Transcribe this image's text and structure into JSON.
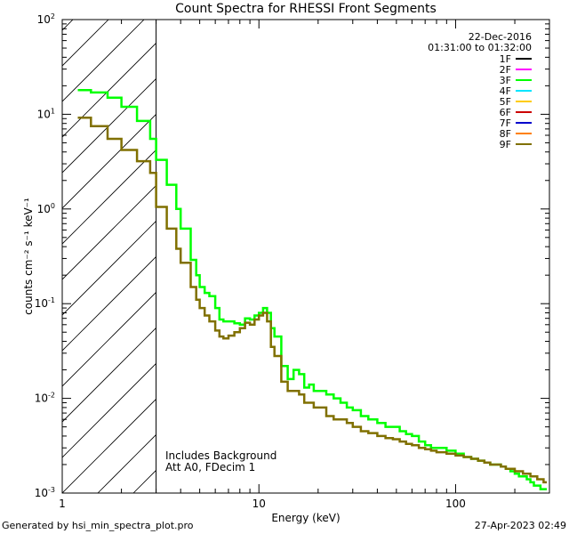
{
  "chart_data": {
    "type": "line",
    "title": "Count Spectra for RHESSI Front Segments",
    "xlabel": "Energy (keV)",
    "ylabel": "counts cm⁻² s⁻¹ keV⁻¹",
    "xscale": "log",
    "yscale": "log",
    "xlim": [
      1,
      300
    ],
    "ylim": [
      0.001,
      100
    ],
    "x_ticks": [
      {
        "value": 1,
        "label": "1"
      },
      {
        "value": 10,
        "label": "10"
      },
      {
        "value": 100,
        "label": "100"
      }
    ],
    "y_ticks": [
      {
        "value": 0.001,
        "base": "10",
        "exp": "-3"
      },
      {
        "value": 0.01,
        "base": "10",
        "exp": "-2"
      },
      {
        "value": 0.1,
        "base": "10",
        "exp": "-1"
      },
      {
        "value": 1,
        "base": "10",
        "exp": "0"
      },
      {
        "value": 10,
        "base": "10",
        "exp": "1"
      },
      {
        "value": 100,
        "base": "10",
        "exp": "2"
      }
    ],
    "excluded_region": {
      "from": 1,
      "to": 3
    },
    "annotations": [
      "22-Dec-2016",
      "01:31:00 to 01:32:00"
    ],
    "notes": [
      "Includes Background",
      "Att A0, FDecim 1"
    ],
    "footer_left": "Generated by hsi_min_spectra_plot.pro",
    "footer_right": "27-Apr-2023 02:49",
    "legend": [
      {
        "name": "1F",
        "color": "#000000"
      },
      {
        "name": "2F",
        "color": "#ff00ff"
      },
      {
        "name": "3F",
        "color": "#00ff00"
      },
      {
        "name": "4F",
        "color": "#00e5ff"
      },
      {
        "name": "5F",
        "color": "#ffcc00"
      },
      {
        "name": "6F",
        "color": "#cc0000"
      },
      {
        "name": "7F",
        "color": "#0000cc"
      },
      {
        "name": "8F",
        "color": "#ff8000"
      },
      {
        "name": "9F",
        "color": "#807000"
      }
    ],
    "series": [
      {
        "name": "3F",
        "color": "#00ff00",
        "x": [
          1.2,
          1.3,
          1.4,
          1.5,
          1.7,
          1.8,
          2.0,
          2.2,
          2.4,
          2.6,
          2.8,
          3.0,
          3.2,
          3.4,
          3.6,
          3.8,
          4.0,
          4.2,
          4.5,
          4.8,
          5.0,
          5.3,
          5.6,
          6.0,
          6.3,
          6.6,
          7.0,
          7.5,
          8.0,
          8.5,
          9.0,
          9.5,
          10.0,
          10.5,
          11.0,
          11.5,
          12.0,
          13.0,
          14.0,
          15.0,
          16.0,
          17.0,
          18.0,
          19.0,
          20.0,
          22.0,
          24.0,
          26.0,
          28.0,
          30.0,
          33.0,
          36.0,
          40.0,
          44.0,
          48.0,
          52.0,
          56.0,
          60.0,
          65.0,
          70.0,
          75.0,
          80.0,
          90.0,
          100.0,
          110.0,
          120.0,
          130.0,
          140.0,
          150.0,
          160.0,
          170.0,
          180.0,
          190.0,
          200.0,
          210.0,
          220.0,
          230.0,
          240.0,
          250.0,
          260.0,
          270.0,
          280.0
        ],
        "y": [
          18,
          18,
          17,
          17,
          15,
          15,
          12,
          12,
          8.5,
          8.5,
          5.5,
          3.3,
          3.3,
          1.8,
          1.8,
          1.0,
          0.62,
          0.62,
          0.29,
          0.2,
          0.15,
          0.13,
          0.12,
          0.09,
          0.068,
          0.065,
          0.065,
          0.062,
          0.06,
          0.07,
          0.068,
          0.075,
          0.08,
          0.09,
          0.08,
          0.055,
          0.045,
          0.022,
          0.016,
          0.02,
          0.018,
          0.013,
          0.014,
          0.012,
          0.012,
          0.011,
          0.01,
          0.009,
          0.008,
          0.0075,
          0.0065,
          0.006,
          0.0055,
          0.005,
          0.005,
          0.0045,
          0.0042,
          0.004,
          0.0035,
          0.0032,
          0.003,
          0.003,
          0.0028,
          0.0026,
          0.0024,
          0.0023,
          0.0022,
          0.0021,
          0.002,
          0.002,
          0.0019,
          0.0018,
          0.0017,
          0.0016,
          0.0015,
          0.0015,
          0.0014,
          0.0013,
          0.0012,
          0.0012,
          0.0011,
          0.0011
        ]
      },
      {
        "name": "9F",
        "color": "#807000",
        "x": [
          1.2,
          1.3,
          1.4,
          1.5,
          1.7,
          1.8,
          2.0,
          2.2,
          2.4,
          2.6,
          2.8,
          3.0,
          3.2,
          3.4,
          3.6,
          3.8,
          4.0,
          4.2,
          4.5,
          4.8,
          5.0,
          5.3,
          5.6,
          6.0,
          6.3,
          6.6,
          7.0,
          7.5,
          8.0,
          8.5,
          9.0,
          9.5,
          10.0,
          10.5,
          11.0,
          11.5,
          12.0,
          13.0,
          14.0,
          15.0,
          16.0,
          17.0,
          18.0,
          19.0,
          20.0,
          22.0,
          24.0,
          26.0,
          28.0,
          30.0,
          33.0,
          36.0,
          40.0,
          44.0,
          48.0,
          52.0,
          56.0,
          60.0,
          65.0,
          70.0,
          75.0,
          80.0,
          90.0,
          100.0,
          110.0,
          120.0,
          130.0,
          140.0,
          150.0,
          160.0,
          170.0,
          180.0,
          190.0,
          200.0,
          210.0,
          220.0,
          230.0,
          240.0,
          250.0,
          260.0,
          270.0,
          280.0
        ],
        "y": [
          9.2,
          9.2,
          7.5,
          7.5,
          5.5,
          5.5,
          4.2,
          4.2,
          3.2,
          3.2,
          2.4,
          1.05,
          1.05,
          0.62,
          0.62,
          0.38,
          0.27,
          0.27,
          0.15,
          0.11,
          0.09,
          0.075,
          0.065,
          0.052,
          0.045,
          0.043,
          0.046,
          0.05,
          0.055,
          0.063,
          0.06,
          0.068,
          0.075,
          0.08,
          0.065,
          0.035,
          0.028,
          0.015,
          0.012,
          0.012,
          0.011,
          0.009,
          0.009,
          0.008,
          0.008,
          0.0065,
          0.006,
          0.006,
          0.0055,
          0.005,
          0.0045,
          0.0043,
          0.004,
          0.0038,
          0.0037,
          0.0035,
          0.0033,
          0.0032,
          0.003,
          0.0029,
          0.0028,
          0.0027,
          0.0026,
          0.0025,
          0.0024,
          0.0023,
          0.0022,
          0.0021,
          0.002,
          0.002,
          0.0019,
          0.0018,
          0.0018,
          0.0017,
          0.0017,
          0.0016,
          0.0016,
          0.0015,
          0.0015,
          0.0014,
          0.0014,
          0.0013
        ]
      }
    ]
  }
}
